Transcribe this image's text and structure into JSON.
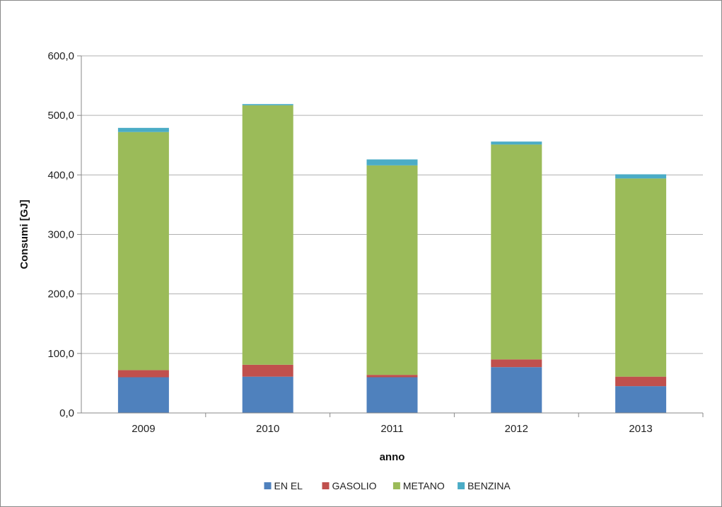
{
  "chart_data": {
    "type": "bar",
    "stacked": true,
    "title": "",
    "xlabel": "anno",
    "ylabel": "Consumi [GJ]",
    "ylim": [
      0,
      600
    ],
    "y_tick_step": 100,
    "y_tick_labels": [
      "0,0",
      "100,0",
      "200,0",
      "300,0",
      "400,0",
      "500,0",
      "600,0"
    ],
    "grid": true,
    "legend_position": "bottom",
    "categories": [
      "2009",
      "2010",
      "2011",
      "2012",
      "2013"
    ],
    "series": [
      {
        "name": "EN EL",
        "color": "#4f81bd",
        "values": [
          60,
          61,
          60,
          77,
          45
        ]
      },
      {
        "name": "GASOLIO",
        "color": "#c0504d",
        "values": [
          12,
          20,
          4,
          13,
          16
        ]
      },
      {
        "name": "METANO",
        "color": "#9bbb59",
        "values": [
          400,
          436,
          352,
          361,
          333
        ]
      },
      {
        "name": "BENZINA",
        "color": "#4bacc6",
        "values": [
          7,
          2,
          10,
          5,
          7
        ]
      }
    ]
  }
}
